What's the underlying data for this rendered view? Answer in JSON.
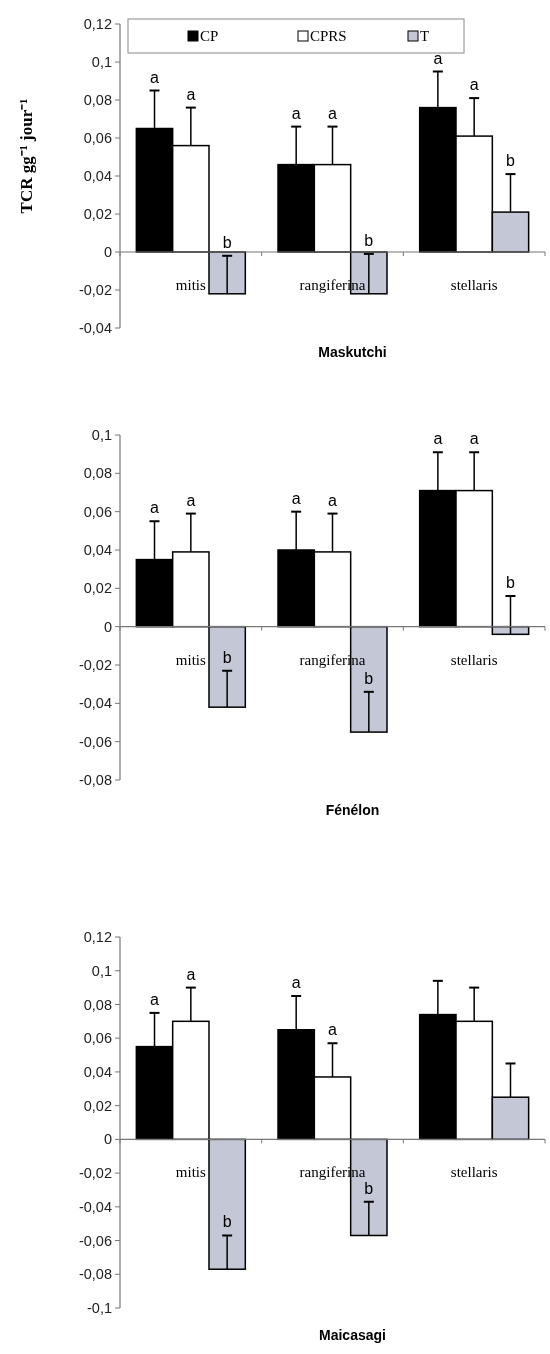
{
  "chart_data": [
    {
      "type": "bar",
      "ylabel": "TCR gg⁻¹ jour⁻¹",
      "xlabel": "Maskutchi",
      "categories": [
        "mitis",
        "rangiferina",
        "stellaris"
      ],
      "legend": "top",
      "series": [
        {
          "name": "CP",
          "color": "#000000",
          "values": [
            0.065,
            0.046,
            0.076
          ],
          "errors": [
            [
              0.065,
              0.085
            ],
            [
              0.046,
              0.066
            ],
            [
              0.076,
              0.095
            ]
          ],
          "value_labels": [
            "a",
            "a",
            "a"
          ]
        },
        {
          "name": "CPRS",
          "color": "#ffffff",
          "values": [
            0.056,
            0.046,
            0.061
          ],
          "errors": [
            [
              0.056,
              0.076
            ],
            [
              0.046,
              0.066
            ],
            [
              0.061,
              0.081
            ]
          ],
          "value_labels": [
            "a",
            "a",
            "a"
          ]
        },
        {
          "name": "T",
          "color": "#c3c7d6",
          "values": [
            -0.022,
            -0.022,
            0.021
          ],
          "errors": [
            [
              -0.022,
              -0.002
            ],
            [
              -0.022,
              -0.001
            ],
            [
              0.021,
              0.041
            ]
          ],
          "value_labels": [
            "b",
            "b",
            "b"
          ]
        }
      ],
      "ylim": [
        -0.04,
        0.12
      ],
      "yticks": [
        {
          "value": -0.04,
          "label": "-0,04"
        },
        {
          "value": -0.02,
          "label": "-0,02"
        },
        {
          "value": 0,
          "label": "0"
        },
        {
          "value": 0.02,
          "label": "0,02"
        },
        {
          "value": 0.04,
          "label": "0,04"
        },
        {
          "value": 0.06,
          "label": "0,06"
        },
        {
          "value": 0.08,
          "label": "0,08"
        },
        {
          "value": 0.1,
          "label": "0,1"
        },
        {
          "value": 0.12,
          "label": "0,12"
        }
      ]
    },
    {
      "type": "bar",
      "xlabel": "Fénélon",
      "categories": [
        "mitis",
        "rangiferina",
        "stellaris"
      ],
      "series": [
        {
          "color": "#000000",
          "values": [
            0.035,
            0.04,
            0.071
          ],
          "errors": [
            [
              0.035,
              0.055
            ],
            [
              0.04,
              0.06
            ],
            [
              0.071,
              0.091
            ]
          ],
          "value_labels": [
            "a",
            "a",
            "a"
          ]
        },
        {
          "color": "#ffffff",
          "values": [
            0.039,
            0.039,
            0.071
          ],
          "errors": [
            [
              0.039,
              0.059
            ],
            [
              0.039,
              0.059
            ],
            [
              0.071,
              0.091
            ]
          ],
          "value_labels": [
            "a",
            "a",
            "a"
          ]
        },
        {
          "color": "#c3c7d6",
          "values": [
            -0.042,
            -0.055,
            -0.004
          ],
          "errors": [
            [
              -0.042,
              -0.023
            ],
            [
              -0.055,
              -0.034
            ],
            [
              -0.004,
              0.016
            ]
          ],
          "value_labels": [
            "b",
            "b",
            "b"
          ]
        }
      ],
      "ylim": [
        -0.08,
        0.1
      ],
      "yticks": [
        {
          "value": -0.08,
          "label": "-0,08"
        },
        {
          "value": -0.06,
          "label": "-0,06"
        },
        {
          "value": -0.04,
          "label": "-0,04"
        },
        {
          "value": -0.02,
          "label": "-0,02"
        },
        {
          "value": 0,
          "label": "0"
        },
        {
          "value": 0.02,
          "label": "0,02"
        },
        {
          "value": 0.04,
          "label": "0,04"
        },
        {
          "value": 0.06,
          "label": "0,06"
        },
        {
          "value": 0.08,
          "label": "0,08"
        },
        {
          "value": 0.1,
          "label": "0,1"
        }
      ]
    },
    {
      "type": "bar",
      "xlabel": "Maicasagi",
      "categories": [
        "mitis",
        "rangiferina",
        "stellaris"
      ],
      "series": [
        {
          "color": "#000000",
          "values": [
            0.055,
            0.065,
            0.074
          ],
          "errors": [
            [
              0.055,
              0.075
            ],
            [
              0.065,
              0.085
            ],
            [
              0.074,
              0.094
            ]
          ],
          "value_labels": [
            "a",
            "a",
            null
          ]
        },
        {
          "color": "#ffffff",
          "values": [
            0.07,
            0.037,
            0.07
          ],
          "errors": [
            [
              0.07,
              0.09
            ],
            [
              0.037,
              0.057
            ],
            [
              0.07,
              0.09
            ]
          ],
          "value_labels": [
            "a",
            "a",
            null
          ]
        },
        {
          "color": "#c3c7d6",
          "values": [
            -0.077,
            -0.057,
            0.025
          ],
          "errors": [
            [
              -0.077,
              -0.057
            ],
            [
              -0.057,
              -0.037
            ],
            [
              0.025,
              0.045
            ]
          ],
          "value_labels": [
            "b",
            "b",
            null
          ]
        }
      ],
      "ylim": [
        -0.1,
        0.12
      ],
      "yticks": [
        {
          "value": -0.1,
          "label": "-0,1"
        },
        {
          "value": -0.08,
          "label": "-0,08"
        },
        {
          "value": -0.06,
          "label": "-0,06"
        },
        {
          "value": -0.04,
          "label": "-0,04"
        },
        {
          "value": -0.02,
          "label": "-0,02"
        },
        {
          "value": 0,
          "label": "0"
        },
        {
          "value": 0.02,
          "label": "0,02"
        },
        {
          "value": 0.04,
          "label": "0,04"
        },
        {
          "value": 0.06,
          "label": "0,06"
        },
        {
          "value": 0.08,
          "label": "0,08"
        },
        {
          "value": 0.1,
          "label": "0,1"
        },
        {
          "value": 0.12,
          "label": "0,12"
        }
      ]
    }
  ]
}
